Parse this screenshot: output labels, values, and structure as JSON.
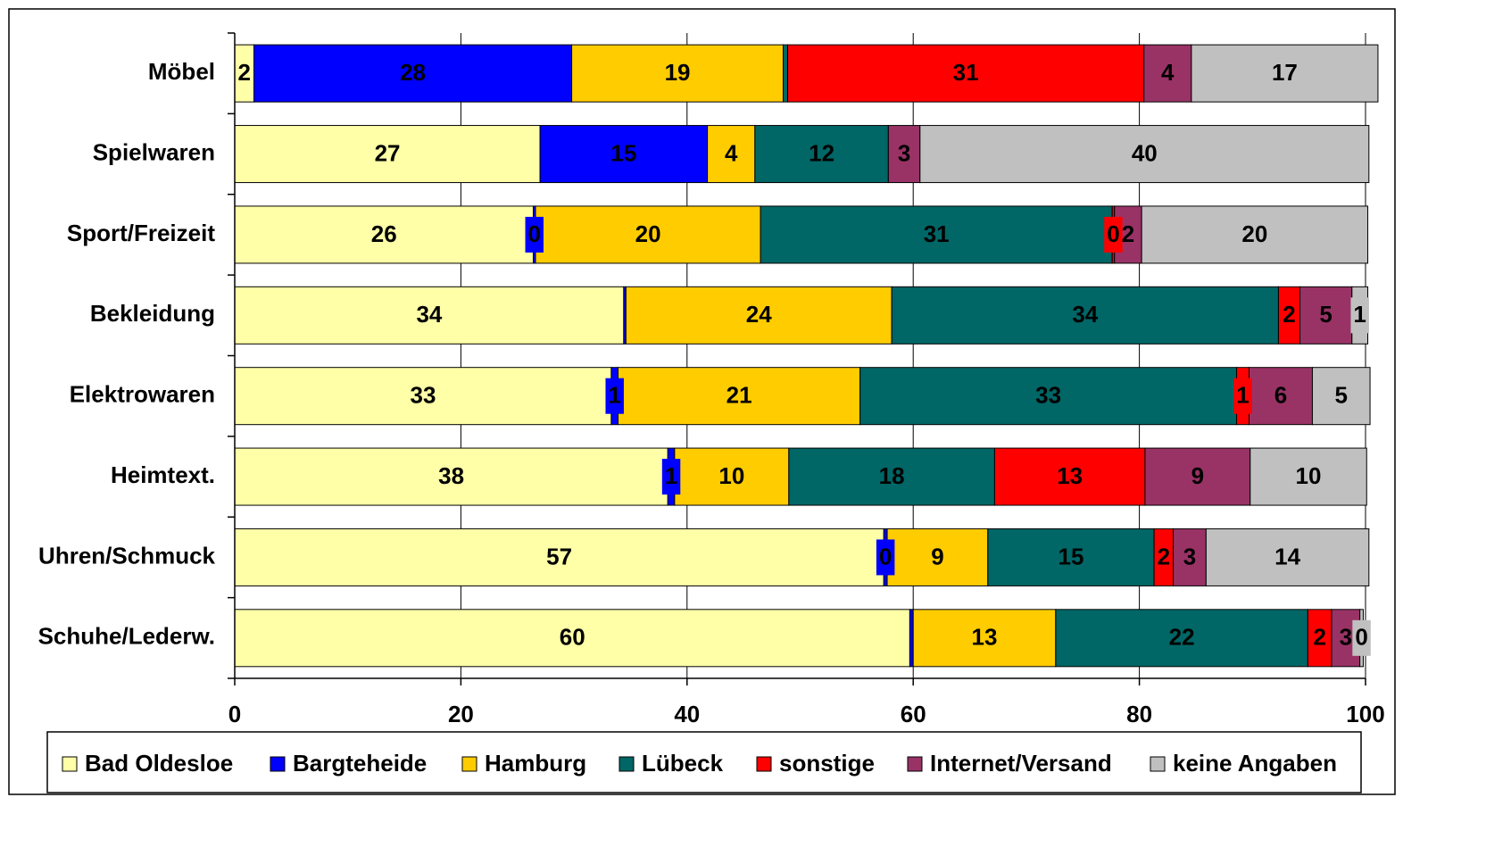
{
  "chart_data": {
    "type": "stacked_bar_horizontal",
    "categories": [
      "Möbel",
      "Spielwaren",
      "Sport/Freizeit",
      "Bekleidung",
      "Elektrowaren",
      "Heimtext.",
      "Uhren/Schmuck",
      "Schuhe/Lederw."
    ],
    "series": [
      {
        "name": "Bad Oldesloe",
        "color": "#ffffa8",
        "values": [
          1.7,
          27.0,
          26.4,
          34.4,
          33.3,
          38.3,
          57.4,
          59.7
        ],
        "value_labels": [
          "2",
          "27",
          "26",
          "34",
          "33",
          "38",
          "57",
          "60"
        ]
      },
      {
        "name": "Bargteheide",
        "color": "#0000ff",
        "values": [
          28.1,
          14.8,
          0.2,
          0.2,
          0.6,
          0.6,
          0.3,
          0.3
        ],
        "value_labels": [
          "28",
          "15",
          "0",
          null,
          "1",
          "1",
          "0",
          null
        ]
      },
      {
        "name": "Hamburg",
        "color": "#ffcc00",
        "values": [
          18.7,
          4.2,
          19.9,
          23.5,
          21.4,
          10.1,
          8.9,
          12.6
        ],
        "value_labels": [
          "19",
          "4",
          "20",
          "24",
          "21",
          "10",
          "9",
          "13"
        ]
      },
      {
        "name": "Lübeck",
        "color": "#006666",
        "values": [
          0.4,
          11.8,
          31.1,
          34.2,
          33.3,
          18.2,
          14.7,
          22.3
        ],
        "value_labels": [
          null,
          "12",
          "31",
          "34",
          "33",
          "18",
          "15",
          "22"
        ]
      },
      {
        "name": "sonstige",
        "color": "#ff0000",
        "values": [
          31.5,
          0.0,
          0.2,
          1.9,
          1.1,
          13.3,
          1.7,
          2.1
        ],
        "value_labels": [
          "31",
          null,
          "0",
          "2",
          "1",
          "13",
          "2",
          "2"
        ]
      },
      {
        "name": "Internet/Versand",
        "color": "#993366",
        "values": [
          4.2,
          2.8,
          2.4,
          4.6,
          5.6,
          9.3,
          2.9,
          2.5
        ],
        "value_labels": [
          "4",
          "3",
          "2",
          "5",
          "6",
          "9",
          "3",
          "3"
        ]
      },
      {
        "name": "keine Angaben",
        "color": "#c0c0c0",
        "values": [
          16.5,
          39.7,
          20.0,
          1.4,
          5.1,
          10.3,
          14.4,
          0.3
        ],
        "value_labels": [
          "17",
          "40",
          "20",
          "1",
          "5",
          "10",
          "14",
          "0"
        ]
      }
    ],
    "xlim": [
      0,
      100
    ],
    "xticks": [
      0,
      20,
      40,
      60,
      80,
      100
    ],
    "grid": true,
    "legend": "bottom"
  }
}
